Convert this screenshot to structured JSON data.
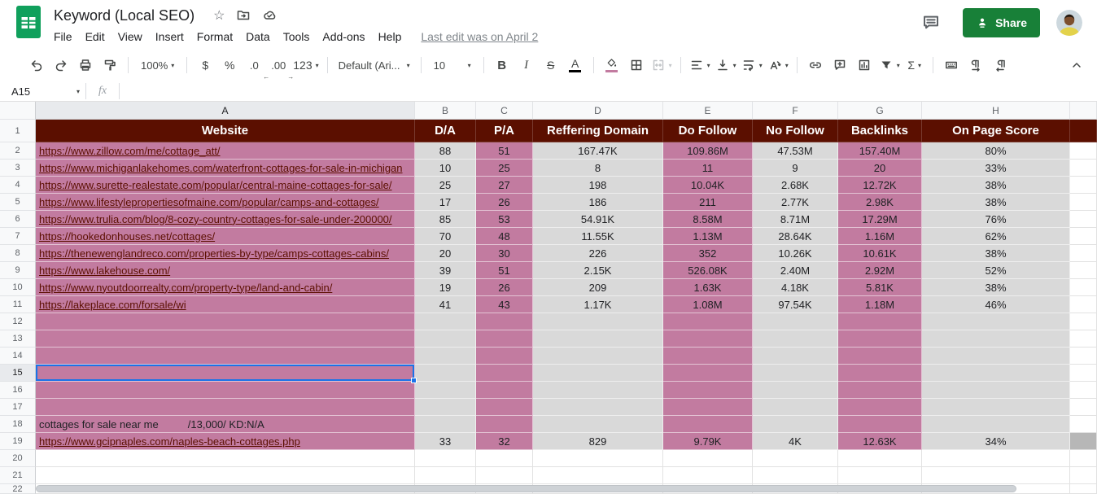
{
  "app": {
    "title": "Keyword (Local SEO)",
    "last_edit": "Last edit was on April 2",
    "share_label": "Share",
    "menus": [
      "File",
      "Edit",
      "View",
      "Insert",
      "Format",
      "Data",
      "Tools",
      "Add-ons",
      "Help"
    ],
    "colors": {
      "header_maroon": "#5b0f00",
      "pink_fill": "#c27ba0",
      "gray_fill": "#d9d9d9",
      "dark_gray_fill": "#b7b7b7",
      "share_green": "#188038",
      "selection_blue": "#1a73e8",
      "link_color": "#5b0f00"
    }
  },
  "toolbar": {
    "zoom": "100%",
    "currency": "$",
    "percent": "%",
    "decrease_decimal": ".0",
    "increase_decimal": ".00",
    "more_formats": "123",
    "font": "Default (Ari...",
    "font_size": "10",
    "bold": "B",
    "italic": "I",
    "strikethrough": "S",
    "text_color": "A",
    "functions": "Σ"
  },
  "formula_bar": {
    "name_box": "A15",
    "fx_label": "fx",
    "value": ""
  },
  "sheet": {
    "column_letters": [
      "A",
      "B",
      "C",
      "D",
      "E",
      "F",
      "G",
      "H"
    ],
    "header_row_number": "1",
    "header_row": [
      "Website",
      "D/A",
      "P/A",
      "Reffering Domain",
      "Do Follow",
      "No Follow",
      "Backlinks",
      "On Page Score"
    ],
    "selected_cell": "A15",
    "partial_row_number": "22",
    "rows": [
      {
        "n": "2",
        "a": "https://www.zillow.com/me/cottage_att/",
        "link": true,
        "colored": true,
        "cells": [
          "88",
          "51",
          "167.47K",
          "109.86M",
          "47.53M",
          "157.40M",
          "80%"
        ]
      },
      {
        "n": "3",
        "a": "https://www.michiganlakehomes.com/waterfront-cottages-for-sale-in-michigan",
        "link": true,
        "colored": true,
        "cells": [
          "10",
          "25",
          "8",
          "11",
          "9",
          "20",
          "33%"
        ]
      },
      {
        "n": "4",
        "a": "https://www.surette-realestate.com/popular/central-maine-cottages-for-sale/",
        "link": true,
        "colored": true,
        "cells": [
          "25",
          "27",
          "198",
          "10.04K",
          "2.68K",
          "12.72K",
          "38%"
        ]
      },
      {
        "n": "5",
        "a": "https://www.lifestylepropertiesofmaine.com/popular/camps-and-cottages/",
        "link": true,
        "colored": true,
        "cells": [
          "17",
          "26",
          "186",
          "211",
          "2.77K",
          "2.98K",
          "38%"
        ]
      },
      {
        "n": "6",
        "a": "https://www.trulia.com/blog/8-cozy-country-cottages-for-sale-under-200000/",
        "link": true,
        "colored": true,
        "cells": [
          "85",
          "53",
          "54.91K",
          "8.58M",
          "8.71M",
          "17.29M",
          "76%"
        ]
      },
      {
        "n": "7",
        "a": "https://hookedonhouses.net/cottages/",
        "link": true,
        "colored": true,
        "cells": [
          "70",
          "48",
          "11.55K",
          "1.13M",
          "28.64K",
          "1.16M",
          "62%"
        ]
      },
      {
        "n": "8",
        "a": "https://thenewenglandreco.com/properties-by-type/camps-cottages-cabins/",
        "link": true,
        "colored": true,
        "cells": [
          "20",
          "30",
          "226",
          "352",
          "10.26K",
          "10.61K",
          "38%"
        ]
      },
      {
        "n": "9",
        "a": "https://www.lakehouse.com/",
        "link": true,
        "colored": true,
        "cells": [
          "39",
          "51",
          "2.15K",
          "526.08K",
          "2.40M",
          "2.92M",
          "52%"
        ]
      },
      {
        "n": "10",
        "a": "https://www.nyoutdoorrealty.com/property-type/land-and-cabin/",
        "link": true,
        "colored": true,
        "cells": [
          "19",
          "26",
          "209",
          "1.63K",
          "4.18K",
          "5.81K",
          "38%"
        ]
      },
      {
        "n": "11",
        "a": "https://lakeplace.com/forsale/wi",
        "link": true,
        "colored": true,
        "cells": [
          "41",
          "43",
          "1.17K",
          "1.08M",
          "97.54K",
          "1.18M",
          "46%"
        ]
      },
      {
        "n": "12",
        "a": "",
        "link": false,
        "colored": true,
        "cells": [
          "",
          "",
          "",
          "",
          "",
          "",
          ""
        ]
      },
      {
        "n": "13",
        "a": "",
        "link": false,
        "colored": true,
        "cells": [
          "",
          "",
          "",
          "",
          "",
          "",
          ""
        ]
      },
      {
        "n": "14",
        "a": "",
        "link": false,
        "colored": true,
        "cells": [
          "",
          "",
          "",
          "",
          "",
          "",
          ""
        ]
      },
      {
        "n": "15",
        "a": "",
        "link": false,
        "colored": true,
        "cells": [
          "",
          "",
          "",
          "",
          "",
          "",
          ""
        ]
      },
      {
        "n": "16",
        "a": "",
        "link": false,
        "colored": true,
        "cells": [
          "",
          "",
          "",
          "",
          "",
          "",
          ""
        ]
      },
      {
        "n": "17",
        "a": "",
        "link": false,
        "colored": true,
        "cells": [
          "",
          "",
          "",
          "",
          "",
          "",
          ""
        ]
      },
      {
        "n": "18",
        "a": "cottages for sale near me          /13,000/ KD:N/A",
        "link": false,
        "colored": true,
        "cells": [
          "",
          "",
          "",
          "",
          "",
          "",
          ""
        ]
      },
      {
        "n": "19",
        "a": "https://www.gcipnaples.com/naples-beach-cottages.php",
        "link": true,
        "colored": true,
        "cells": [
          "33",
          "32",
          "829",
          "9.79K",
          "4K",
          "12.63K",
          "34%"
        ]
      },
      {
        "n": "20",
        "a": "",
        "link": false,
        "colored": false,
        "cells": [
          "",
          "",
          "",
          "",
          "",
          "",
          ""
        ]
      },
      {
        "n": "21",
        "a": "",
        "link": false,
        "colored": false,
        "cells": [
          "",
          "",
          "",
          "",
          "",
          "",
          ""
        ]
      }
    ]
  }
}
